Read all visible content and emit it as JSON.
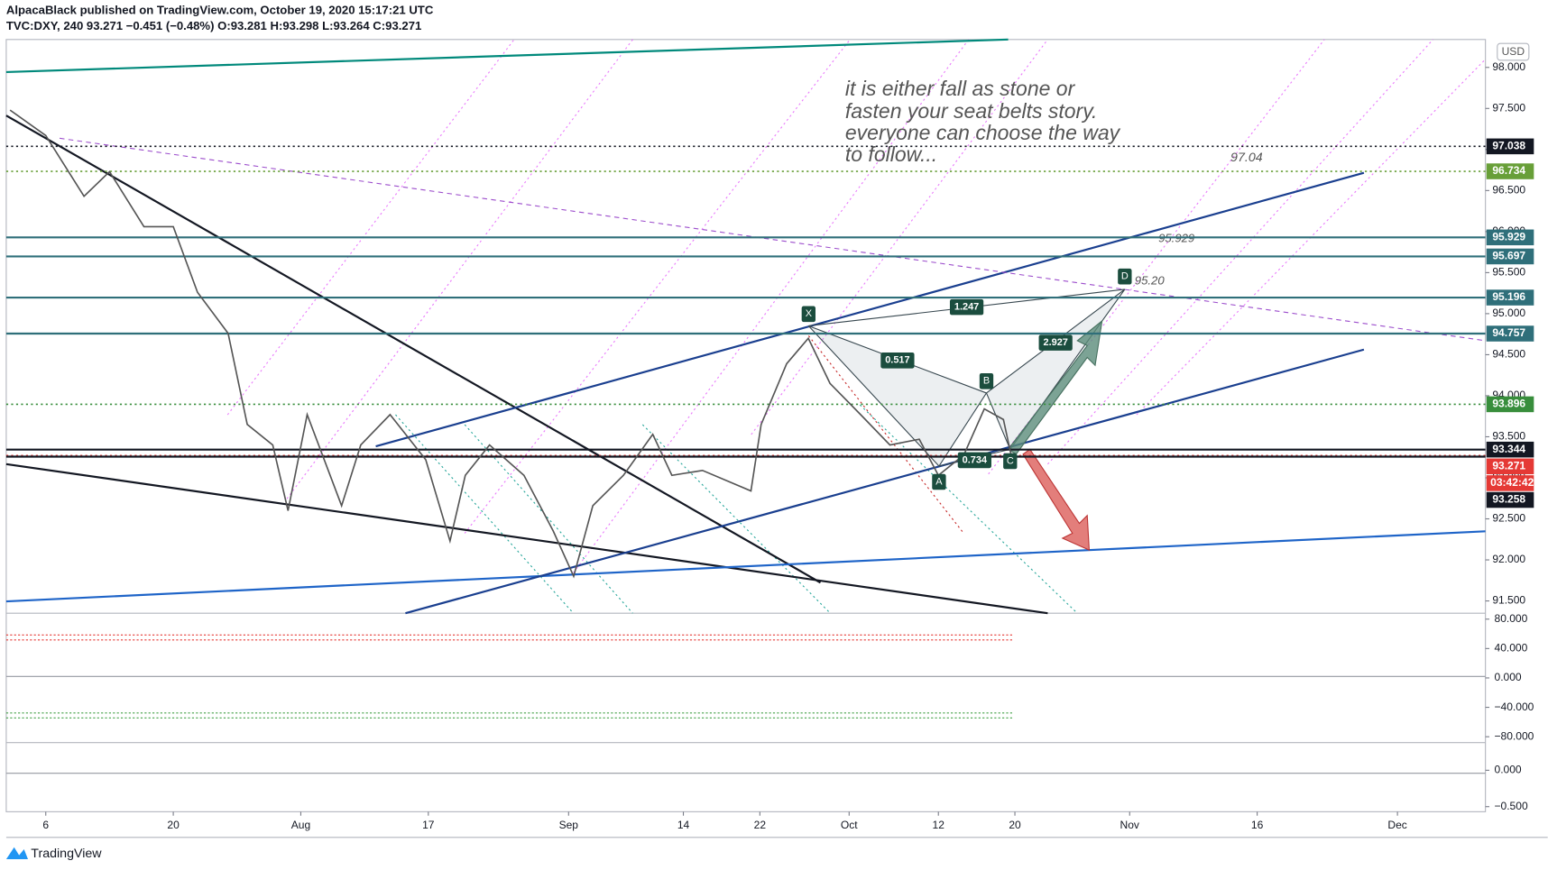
{
  "header": {
    "line1": "AlpacaBlack published on TradingView.com, October 19, 2020 15:17:21 UTC",
    "line2": "TVC:DXY, 240 93.271 −0.451 (−0.48%) O:93.281 H:93.298 L:93.264 C:93.271"
  },
  "footer": "TradingView",
  "currency": "USD",
  "annotation": [
    "it is either fall as stone or",
    "fasten your seat belts story.",
    "everyone can choose the way",
    "to follow..."
  ],
  "price_notes": [
    "97.04",
    "95.929",
    "95.20"
  ],
  "pattern": {
    "points": [
      "X",
      "A",
      "B",
      "C",
      "D"
    ],
    "ratios": [
      "1.247",
      "0.517",
      "2.927",
      "0.734"
    ]
  },
  "countdown": "03:42:42",
  "chart_data": {
    "type": "line",
    "color": "#555555",
    "x": [
      -2.8,
      0,
      3,
      5,
      7.7,
      10,
      11.9,
      14.3,
      15.8,
      17.8,
      19,
      20.5,
      23.2,
      24.7,
      27,
      29.8,
      31.7,
      32.9,
      34.8,
      37.5,
      39.8,
      41.4,
      42.9,
      45.3,
      47.6,
      49.1,
      51.5,
      55.3,
      56.1,
      58.1,
      59.8,
      61.5,
      63.9,
      66.2,
      68.5,
      70,
      72,
      73.6,
      75.1,
      75.7
    ],
    "values": [
      97.48,
      97.17,
      96.43,
      96.73,
      96.06,
      96.06,
      95.26,
      94.76,
      93.65,
      93.4,
      92.6,
      93.77,
      92.66,
      93.4,
      93.77,
      93.22,
      92.23,
      93.03,
      93.4,
      93.03,
      92.35,
      91.8,
      92.66,
      93.03,
      93.53,
      93.03,
      93.09,
      92.84,
      93.65,
      94.39,
      94.7,
      94.15,
      93.77,
      93.4,
      93.47,
      93.03,
      93.28,
      93.84,
      93.71,
      93.28
    ],
    "xlim": [
      -3.1,
      112.9
    ],
    "xticks": [
      {
        "value": 0,
        "label": "6"
      },
      {
        "value": 10,
        "label": "20"
      },
      {
        "value": 20,
        "label": "Aug"
      },
      {
        "value": 30,
        "label": "17"
      },
      {
        "value": 41,
        "label": "Sep"
      },
      {
        "value": 50,
        "label": "14"
      },
      {
        "value": 56,
        "label": "22"
      },
      {
        "value": 63,
        "label": "Oct"
      },
      {
        "value": 70,
        "label": "12"
      },
      {
        "value": 76,
        "label": "20"
      },
      {
        "value": 85,
        "label": "Nov"
      },
      {
        "value": 95,
        "label": "16"
      },
      {
        "value": 106,
        "label": "Dec"
      }
    ],
    "ylim": [
      91.35,
      98.34
    ],
    "yticks": [
      {
        "value": 98,
        "label": "98.000"
      },
      {
        "value": 97.5,
        "label": "97.500"
      },
      {
        "value": 97,
        "label": "97.000"
      },
      {
        "value": 96.5,
        "label": "96.500"
      },
      {
        "value": 96,
        "label": "96.000"
      },
      {
        "value": 95.5,
        "label": "95.500"
      },
      {
        "value": 95,
        "label": "95.000"
      },
      {
        "value": 94.5,
        "label": "94.500"
      },
      {
        "value": 94,
        "label": "94.000"
      },
      {
        "value": 93.5,
        "label": "93.500"
      },
      {
        "value": 93,
        "label": "93.000"
      },
      {
        "value": 92.5,
        "label": "92.500"
      },
      {
        "value": 92,
        "label": "92.000"
      },
      {
        "value": 91.5,
        "label": "91.500"
      }
    ],
    "levels": [
      {
        "value": 97.038,
        "label": "97.038",
        "color": "#131722",
        "style": "dotted"
      },
      {
        "value": 96.734,
        "label": "96.734",
        "color": "#689f38",
        "style": "dotted"
      },
      {
        "value": 95.929,
        "label": "95.929",
        "color": "#2f6f7a",
        "style": "solid"
      },
      {
        "value": 95.697,
        "label": "95.697",
        "color": "#2f6f7a",
        "style": "solid"
      },
      {
        "value": 95.196,
        "label": "95.196",
        "color": "#2f6f7a",
        "style": "solid"
      },
      {
        "value": 94.757,
        "label": "94.757",
        "color": "#2f6f7a",
        "style": "solid"
      },
      {
        "value": 93.896,
        "label": "93.896",
        "color": "#388e3c",
        "style": "dotted"
      },
      {
        "value": 93.344,
        "label": "93.344",
        "color": "#131722",
        "style": "solid"
      },
      {
        "value": 93.271,
        "label": "93.271",
        "color": "#e53935",
        "style": "dotted"
      },
      {
        "value": 93.258,
        "label": "93.258",
        "color": "#131722",
        "style": "solid"
      }
    ],
    "oscillator": {
      "ylim": [
        -88,
        88
      ],
      "yticks": [
        {
          "value": 80,
          "label": "80.000"
        },
        {
          "value": 40,
          "label": "40.000"
        },
        {
          "value": 0,
          "label": "0.000"
        },
        {
          "value": -40,
          "label": "−40.000"
        },
        {
          "value": -80,
          "label": "−80.000"
        }
      ]
    },
    "macd": {
      "ylim": [
        -0.57,
        0.38
      ],
      "yticks": [
        {
          "value": 0,
          "label": "0.000"
        },
        {
          "value": -0.5,
          "label": "−0.500"
        }
      ]
    }
  }
}
